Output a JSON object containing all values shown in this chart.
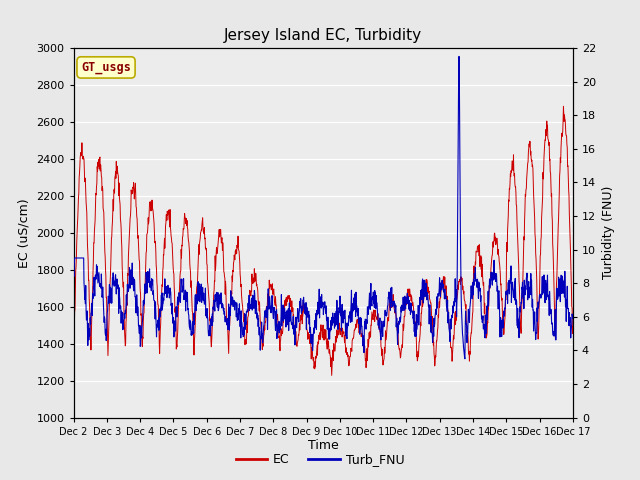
{
  "title": "Jersey Island EC, Turbidity",
  "xlabel": "Time",
  "ylabel_left": "EC (uS/cm)",
  "ylabel_right": "Turbidity (FNU)",
  "ylim_left": [
    1000,
    3000
  ],
  "ylim_right": [
    0,
    22
  ],
  "yticks_left": [
    1000,
    1200,
    1400,
    1600,
    1800,
    2000,
    2200,
    2400,
    2600,
    2800,
    3000
  ],
  "yticks_right": [
    0,
    2,
    4,
    6,
    8,
    10,
    12,
    14,
    16,
    18,
    20,
    22
  ],
  "xtick_labels": [
    "Dec 2",
    "Dec 3",
    "Dec 4",
    "Dec 5",
    "Dec 6",
    "Dec 7",
    "Dec 8",
    "Dec 9",
    "Dec 10",
    "Dec 11",
    "Dec 12",
    "Dec 13",
    "Dec 14",
    "Dec 15",
    "Dec 16",
    "Dec 17"
  ],
  "fig_bg_color": "#e8e8e8",
  "plot_bg_color": "#ececec",
  "ec_color": "#cc0000",
  "turb_color": "#0000bb",
  "legend_label_ec": "EC",
  "legend_label_turb": "Turb_FNU",
  "gt_usgs_label": "GT_usgs",
  "gt_usgs_bg": "#ffffcc",
  "gt_usgs_border": "#bbaa00",
  "gt_usgs_text_color": "#880000",
  "grid_color": "#ffffff"
}
